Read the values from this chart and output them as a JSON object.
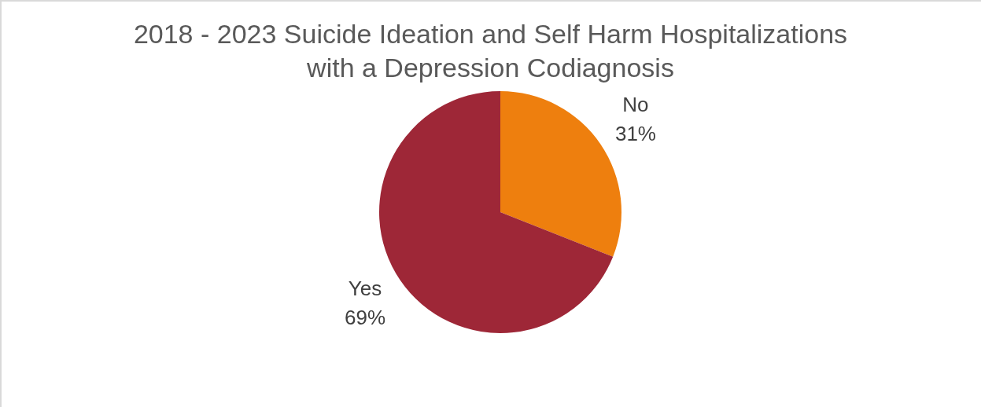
{
  "chart_data": {
    "type": "pie",
    "title": "2018 - 2023 Suicide Ideation and Self Harm Hospitalizations with a Depression Codiagnosis",
    "categories": [
      "No",
      "Yes"
    ],
    "values": [
      31,
      69
    ],
    "colors": [
      "#ee7f0e",
      "#9e2737"
    ],
    "value_labels": [
      "31%",
      "69%"
    ],
    "legend": false
  }
}
